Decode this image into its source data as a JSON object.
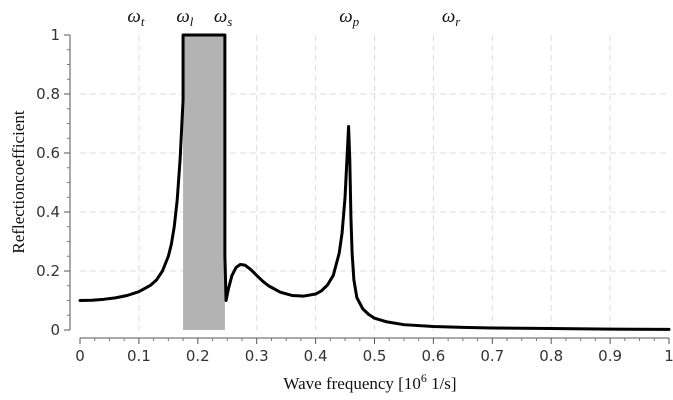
{
  "chart_data": {
    "type": "line",
    "xlabel": {
      "text": "Wave frequency [10",
      "sup": "6",
      "tail": " 1/s]"
    },
    "ylabel": "Reflectioncoefficient",
    "xlim": [
      0,
      1
    ],
    "ylim": [
      0,
      1
    ],
    "grid": true,
    "x_ticks": [
      "0",
      "0.1",
      "0.2",
      "0.3",
      "0.4",
      "0.5",
      "0.6",
      "0.7",
      "0.8",
      "0.9",
      "1"
    ],
    "x_tick_values": [
      0,
      0.1,
      0.2,
      0.3,
      0.4,
      0.5,
      0.6,
      0.7,
      0.8,
      0.9,
      1
    ],
    "y_ticks": [
      "0",
      "0.2",
      "0.4",
      "0.6",
      "0.8",
      "1"
    ],
    "y_tick_values": [
      0,
      0.2,
      0.4,
      0.6,
      0.8,
      1
    ],
    "band": {
      "x_start": 0.175,
      "x_end": 0.246,
      "y_top": 1.0,
      "color": "#b3b3b3"
    },
    "frequency_labels": [
      {
        "base": "ω",
        "sub": "t",
        "x": 0.095
      },
      {
        "base": "ω",
        "sub": "l",
        "x": 0.178
      },
      {
        "base": "ω",
        "sub": "s",
        "x": 0.243
      },
      {
        "base": "ω",
        "sub": "p",
        "x": 0.457
      },
      {
        "base": "ω",
        "sub": "r",
        "x": 0.63
      }
    ],
    "series": [
      {
        "color": "#000000",
        "x": [
          0.0,
          0.02,
          0.04,
          0.06,
          0.08,
          0.1,
          0.12,
          0.13,
          0.14,
          0.15,
          0.155,
          0.16,
          0.165,
          0.17,
          0.175,
          0.175,
          0.246,
          0.246,
          0.248,
          0.252,
          0.258,
          0.265,
          0.272,
          0.28,
          0.29,
          0.3,
          0.31,
          0.32,
          0.34,
          0.36,
          0.38,
          0.4,
          0.41,
          0.42,
          0.43,
          0.44,
          0.445,
          0.45,
          0.453,
          0.456,
          0.458,
          0.46,
          0.462,
          0.465,
          0.47,
          0.48,
          0.49,
          0.5,
          0.52,
          0.55,
          0.6,
          0.65,
          0.7,
          0.8,
          0.9,
          1.0
        ],
        "y": [
          0.1,
          0.101,
          0.104,
          0.109,
          0.117,
          0.13,
          0.152,
          0.17,
          0.2,
          0.25,
          0.29,
          0.35,
          0.44,
          0.58,
          0.78,
          1.0,
          1.0,
          0.25,
          0.1,
          0.14,
          0.185,
          0.212,
          0.222,
          0.22,
          0.205,
          0.185,
          0.166,
          0.15,
          0.128,
          0.117,
          0.115,
          0.122,
          0.133,
          0.152,
          0.185,
          0.26,
          0.33,
          0.45,
          0.57,
          0.69,
          0.58,
          0.38,
          0.26,
          0.17,
          0.11,
          0.072,
          0.053,
          0.04,
          0.028,
          0.018,
          0.012,
          0.009,
          0.007,
          0.005,
          0.003,
          0.002
        ]
      }
    ]
  }
}
